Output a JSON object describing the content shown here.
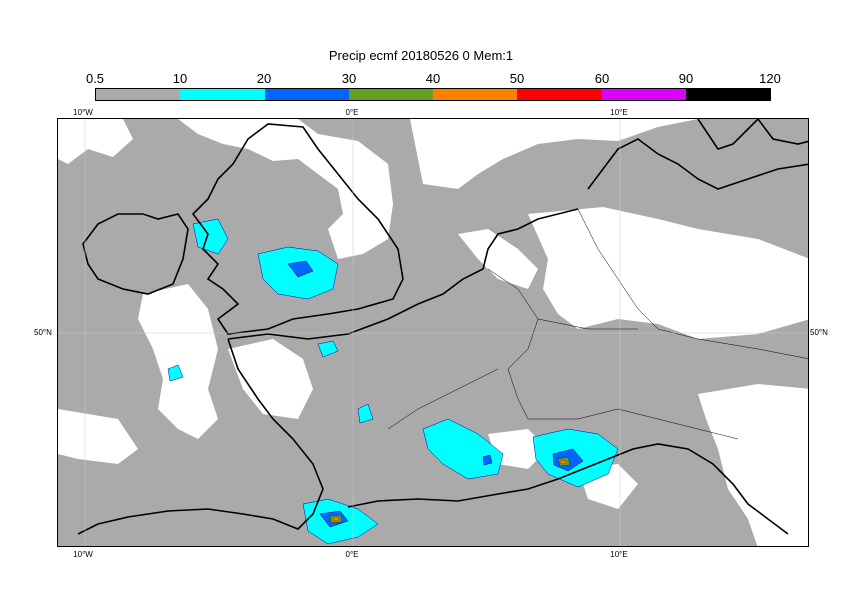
{
  "title": "Precip ecmf 20180526 0 Mem:1",
  "legend": {
    "ticks": [
      "0.5",
      "10",
      "20",
      "30",
      "40",
      "50",
      "60",
      "90",
      "120"
    ],
    "colors": [
      "#aaaaaa",
      "#00ffff",
      "#0066ff",
      "#66a020",
      "#ff8000",
      "#ff0000",
      "#dd00ff",
      "#000000"
    ]
  },
  "axes": {
    "lon_top": [
      "10°W",
      "0°E",
      "10°E"
    ],
    "lon_bottom": [
      "10°W",
      "0°E",
      "10°E"
    ],
    "lat_left": "50°N",
    "lat_right": "50°N"
  }
}
